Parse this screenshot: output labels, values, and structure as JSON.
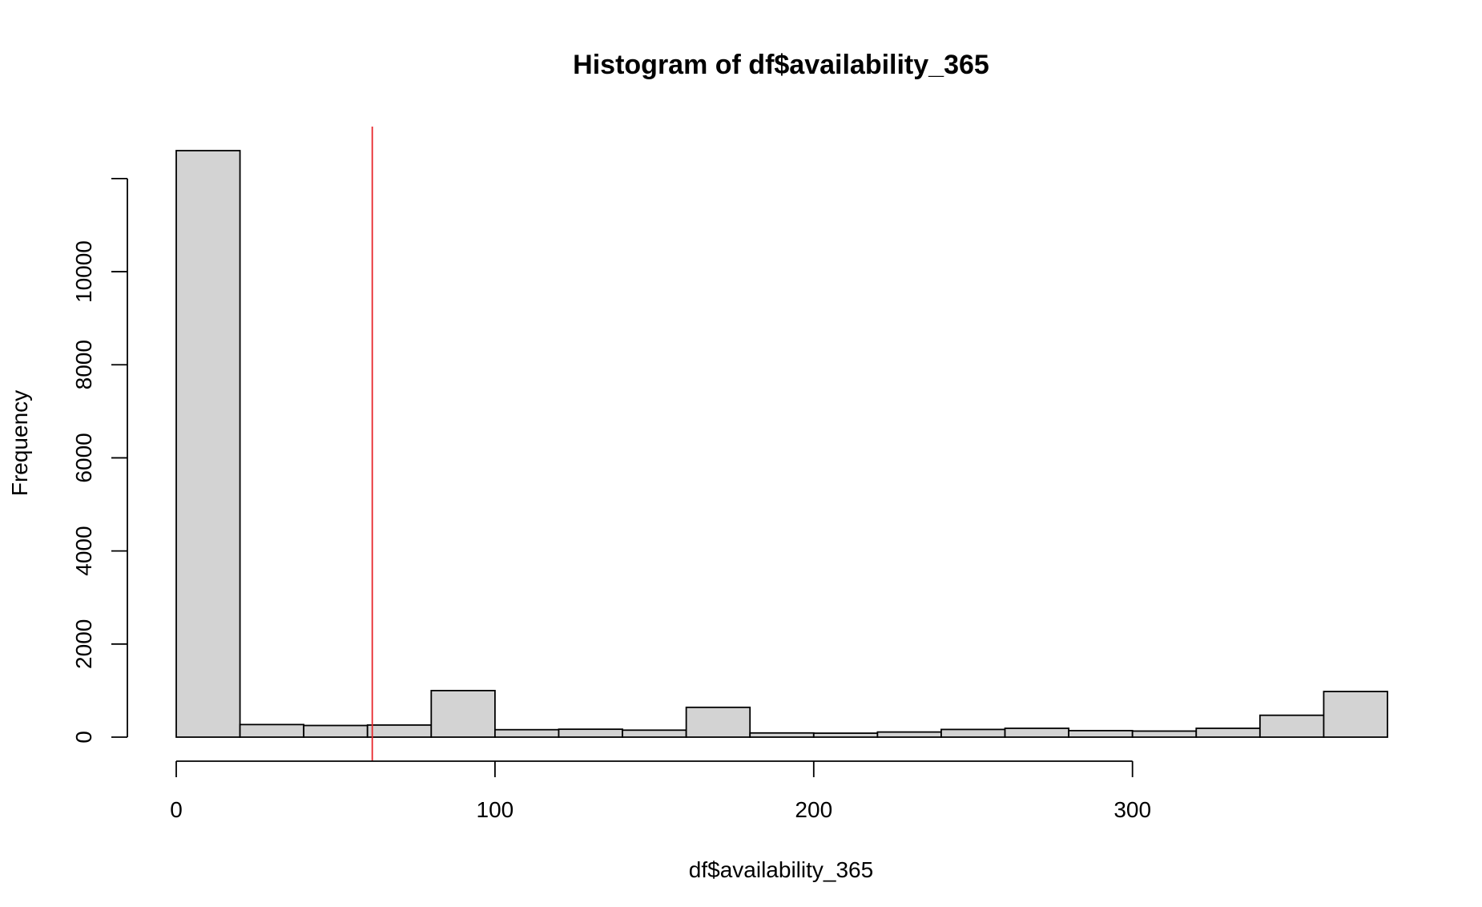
{
  "chart_data": {
    "type": "bar",
    "title": "Histogram of df$availability_365",
    "xlabel": "df$availability_365",
    "ylabel": "Frequency",
    "bin_edges": [
      0,
      20,
      40,
      60,
      80,
      100,
      120,
      140,
      160,
      180,
      200,
      220,
      240,
      260,
      280,
      300,
      320,
      340,
      360,
      380
    ],
    "values": [
      12600,
      270,
      250,
      260,
      1000,
      160,
      170,
      150,
      640,
      90,
      85,
      110,
      165,
      190,
      140,
      130,
      190,
      470,
      980
    ],
    "xlim": [
      0,
      380
    ],
    "ylim": [
      0,
      12600
    ],
    "x_ticks": [
      0,
      100,
      200,
      300
    ],
    "y_ticks": [
      0,
      2000,
      4000,
      6000,
      8000,
      10000,
      12000
    ],
    "x_tick_labels": [
      "0",
      "100",
      "200",
      "300"
    ],
    "y_tick_labels": [
      "0",
      "2000",
      "4000",
      "6000",
      "8000",
      "10000",
      ""
    ],
    "reference_line": {
      "x": 61.5,
      "color": "#e8282d"
    },
    "bar_fill": "#d3d3d3",
    "bar_stroke": "#000000",
    "grid": false
  }
}
